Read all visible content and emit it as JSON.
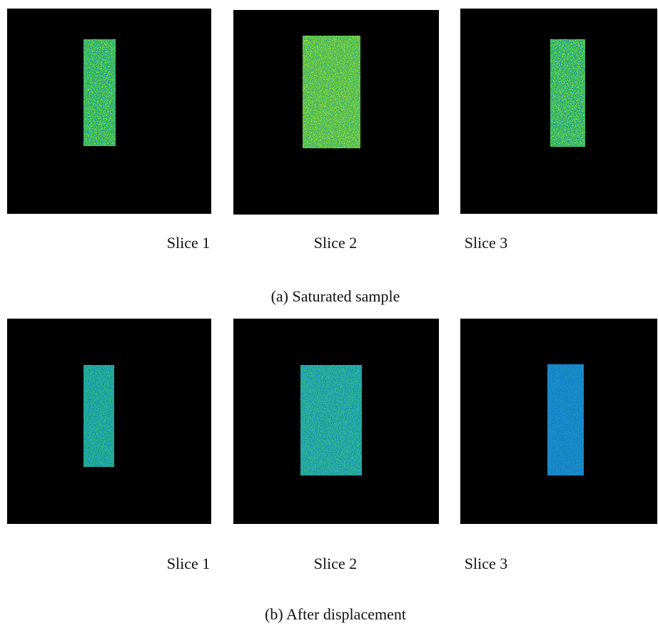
{
  "panels": [
    {
      "slices": [
        "Slice 1",
        "Slice 2",
        "Slice 3"
      ],
      "caption": "(a) Saturated sample"
    },
    {
      "slices": [
        "Slice 1",
        "Slice 2",
        "Slice 3"
      ],
      "caption": "(b) After displacement"
    }
  ]
}
